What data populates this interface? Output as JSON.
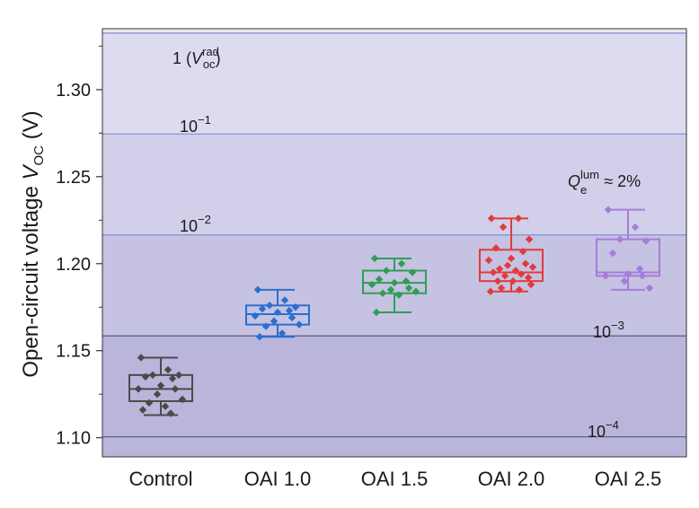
{
  "chart_data": {
    "type": "box",
    "title": "",
    "xlabel": "",
    "ylabel": {
      "text": "Open-circuit voltage ",
      "var": "V",
      "sub": "OC",
      "unit": " (V)"
    },
    "ylim": [
      1.089,
      1.335
    ],
    "yticks": [
      1.1,
      1.15,
      1.2,
      1.25,
      1.3
    ],
    "ytick_labels": [
      "1.10",
      "1.15",
      "1.20",
      "1.25",
      "1.30"
    ],
    "categories": [
      "Control",
      "OAI 1.0",
      "OAI 1.5",
      "OAI 2.0",
      "OAI 2.5"
    ],
    "colors": [
      "#4a4a4a",
      "#2a6fcf",
      "#2f9e55",
      "#e23b3b",
      "#a77bdc"
    ],
    "series": [
      {
        "name": "Control",
        "whisker_low": 1.113,
        "q1": 1.121,
        "median": 1.128,
        "q3": 1.136,
        "whisker_high": 1.146,
        "points": [
          1.146,
          1.139,
          1.136,
          1.136,
          1.135,
          1.134,
          1.13,
          1.128,
          1.128,
          1.125,
          1.122,
          1.12,
          1.118,
          1.116,
          1.114
        ]
      },
      {
        "name": "OAI 1.0",
        "whisker_low": 1.158,
        "q1": 1.165,
        "median": 1.171,
        "q3": 1.176,
        "whisker_high": 1.185,
        "points": [
          1.185,
          1.179,
          1.176,
          1.175,
          1.174,
          1.173,
          1.172,
          1.17,
          1.169,
          1.167,
          1.165,
          1.164,
          1.16,
          1.158
        ]
      },
      {
        "name": "OAI 1.5",
        "whisker_low": 1.172,
        "q1": 1.183,
        "median": 1.189,
        "q3": 1.196,
        "whisker_high": 1.203,
        "points": [
          1.203,
          1.2,
          1.196,
          1.195,
          1.191,
          1.19,
          1.189,
          1.188,
          1.186,
          1.185,
          1.184,
          1.183,
          1.182,
          1.172
        ]
      },
      {
        "name": "OAI 2.0",
        "whisker_low": 1.184,
        "q1": 1.19,
        "median": 1.195,
        "q3": 1.208,
        "whisker_high": 1.226,
        "points": [
          1.226,
          1.226,
          1.221,
          1.214,
          1.209,
          1.207,
          1.203,
          1.202,
          1.2,
          1.199,
          1.198,
          1.197,
          1.196,
          1.195,
          1.194,
          1.193,
          1.192,
          1.19,
          1.19,
          1.188,
          1.186,
          1.185,
          1.184
        ]
      },
      {
        "name": "OAI 2.5",
        "whisker_low": 1.185,
        "q1": 1.193,
        "median": 1.195,
        "q3": 1.214,
        "whisker_high": 1.231,
        "points": [
          1.231,
          1.221,
          1.214,
          1.213,
          1.206,
          1.197,
          1.194,
          1.193,
          1.193,
          1.19,
          1.186
        ]
      }
    ],
    "annotations": {
      "radiative": {
        "prefix": "1 (",
        "var": "V",
        "sup": "rad",
        "sub": "oc",
        "suffix": ")"
      },
      "qlum": {
        "var": "Q",
        "sup": "lum",
        "sub": "e",
        "suffix": " ≈ 2%"
      }
    },
    "efficiency_lines": [
      {
        "base": "1",
        "exp": "",
        "value": 1.3325
      },
      {
        "base": "10",
        "exp": "−1",
        "value": 1.2745
      },
      {
        "base": "10",
        "exp": "−2",
        "value": 1.2165
      },
      {
        "base": "10",
        "exp": "−3",
        "value": 1.1585
      },
      {
        "base": "10",
        "exp": "−4",
        "value": 1.1005
      }
    ],
    "region_colors": [
      "#ebe9f5",
      "#dddbef",
      "#d1cfe9",
      "#c5c2e2",
      "#b9b5db"
    ],
    "line_color": "#7f8fd1",
    "frame_color": "#333333"
  }
}
